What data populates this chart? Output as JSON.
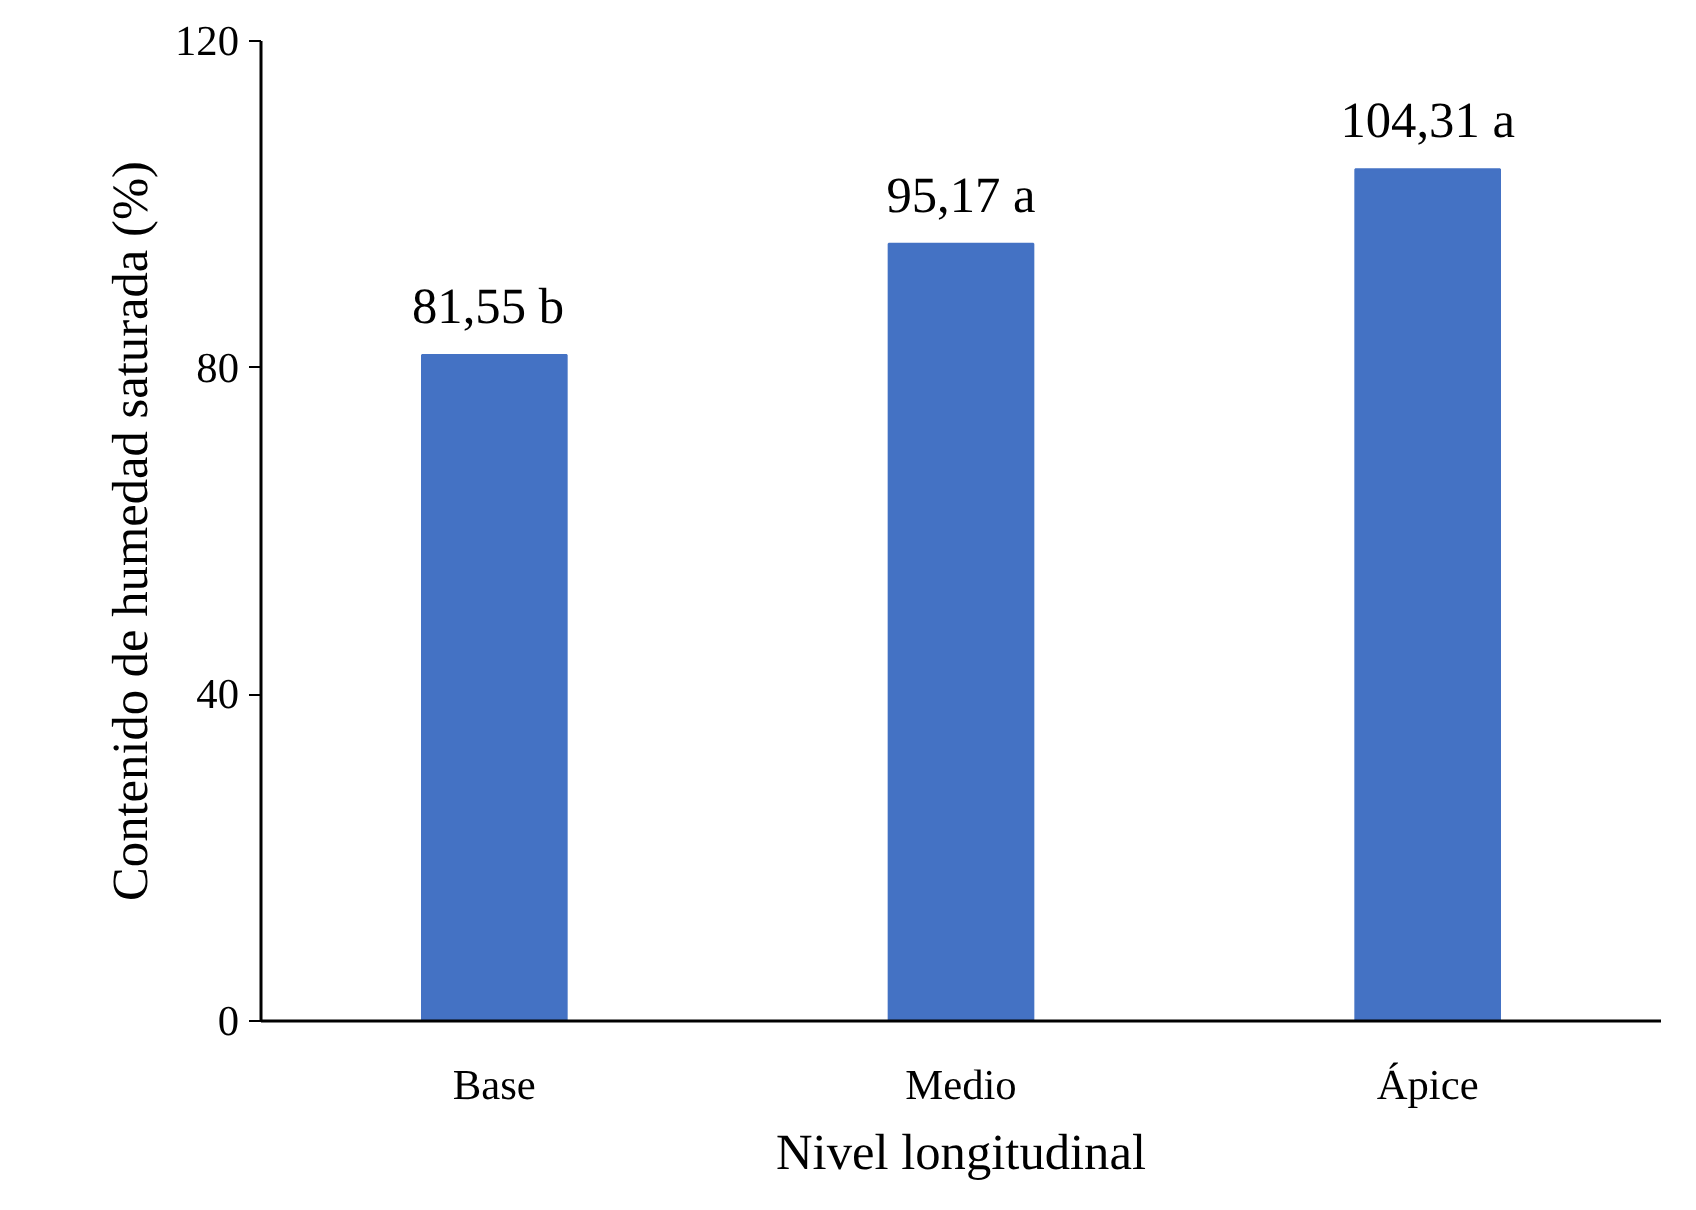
{
  "chart_data": {
    "type": "bar",
    "xlabel": "Nivel longitudinal",
    "ylabel": "Contenido de humedad saturada (%)",
    "categories": [
      "Base",
      "Medio",
      "Ápice"
    ],
    "values": [
      81.55,
      95.17,
      104.31
    ],
    "value_labels": [
      "81,55  b",
      "95,17 a",
      "104,31 a"
    ],
    "color": "#4472c4",
    "ylim": [
      0,
      120
    ],
    "yticks": [
      0,
      40,
      80,
      120
    ],
    "grid": false
  }
}
